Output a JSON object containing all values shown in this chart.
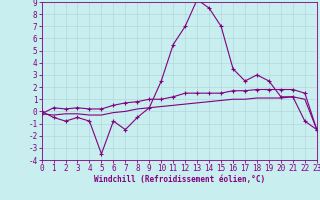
{
  "x": [
    0,
    1,
    2,
    3,
    4,
    5,
    6,
    7,
    8,
    9,
    10,
    11,
    12,
    13,
    14,
    15,
    16,
    17,
    18,
    19,
    20,
    21,
    22,
    23
  ],
  "line1": [
    0,
    -0.5,
    -0.8,
    -0.5,
    -0.8,
    -3.5,
    -0.8,
    -1.5,
    -0.5,
    0.3,
    2.5,
    5.5,
    7.0,
    9.2,
    8.5,
    7.0,
    3.5,
    2.5,
    3.0,
    2.5,
    1.2,
    1.2,
    -0.8,
    -1.5
  ],
  "line2": [
    -0.2,
    0.3,
    0.2,
    0.3,
    0.2,
    0.2,
    0.5,
    0.7,
    0.8,
    1.0,
    1.0,
    1.2,
    1.5,
    1.5,
    1.5,
    1.5,
    1.7,
    1.7,
    1.8,
    1.8,
    1.8,
    1.8,
    1.5,
    -1.5
  ],
  "line3": [
    -0.2,
    -0.3,
    -0.2,
    -0.2,
    -0.3,
    -0.3,
    -0.1,
    0.0,
    0.2,
    0.3,
    0.4,
    0.5,
    0.6,
    0.7,
    0.8,
    0.9,
    1.0,
    1.0,
    1.1,
    1.1,
    1.1,
    1.2,
    1.0,
    -1.5
  ],
  "bg_color": "#c8eef0",
  "grid_color": "#b0d8da",
  "line_color": "#800080",
  "xlabel": "Windchill (Refroidissement éolien,°C)",
  "ylim": [
    -4,
    9
  ],
  "xlim": [
    0,
    23
  ],
  "yticks": [
    -4,
    -3,
    -2,
    -1,
    0,
    1,
    2,
    3,
    4,
    5,
    6,
    7,
    8,
    9
  ],
  "xticks": [
    0,
    1,
    2,
    3,
    4,
    5,
    6,
    7,
    8,
    9,
    10,
    11,
    12,
    13,
    14,
    15,
    16,
    17,
    18,
    19,
    20,
    21,
    22,
    23
  ],
  "marker": "+",
  "marker_size": 3,
  "linewidth": 0.8,
  "tick_fontsize": 5.5,
  "xlabel_fontsize": 5.5
}
